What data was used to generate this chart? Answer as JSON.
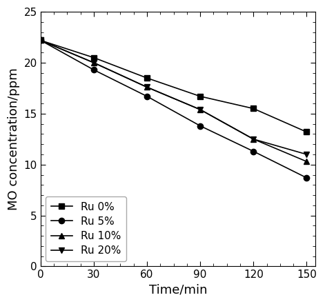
{
  "x": [
    0,
    30,
    60,
    90,
    120,
    150
  ],
  "series": [
    {
      "label": "Ru 0%",
      "values": [
        22.2,
        20.5,
        18.5,
        16.7,
        15.5,
        13.2
      ],
      "marker": "s",
      "color": "#000000"
    },
    {
      "label": "Ru 5%",
      "values": [
        22.2,
        19.3,
        16.7,
        13.8,
        11.3,
        8.7
      ],
      "marker": "o",
      "color": "#000000"
    },
    {
      "label": "Ru 10%",
      "values": [
        22.2,
        20.0,
        17.6,
        15.4,
        12.5,
        10.3
      ],
      "marker": "^",
      "color": "#000000"
    },
    {
      "label": "Ru 20%",
      "values": [
        22.2,
        20.0,
        17.6,
        15.4,
        12.5,
        11.0
      ],
      "marker": "v",
      "color": "#000000"
    }
  ],
  "xlabel": "Time/min",
  "ylabel": "MO concentration/ppm",
  "xlim": [
    0,
    155
  ],
  "ylim": [
    0,
    25
  ],
  "xticks": [
    0,
    30,
    60,
    90,
    120,
    150
  ],
  "yticks": [
    0,
    5,
    10,
    15,
    20,
    25
  ],
  "legend_loc": "lower left",
  "label_fontsize": 13,
  "tick_fontsize": 11,
  "legend_fontsize": 11,
  "line_width": 1.2,
  "marker_size": 6,
  "background_color": "#ffffff"
}
